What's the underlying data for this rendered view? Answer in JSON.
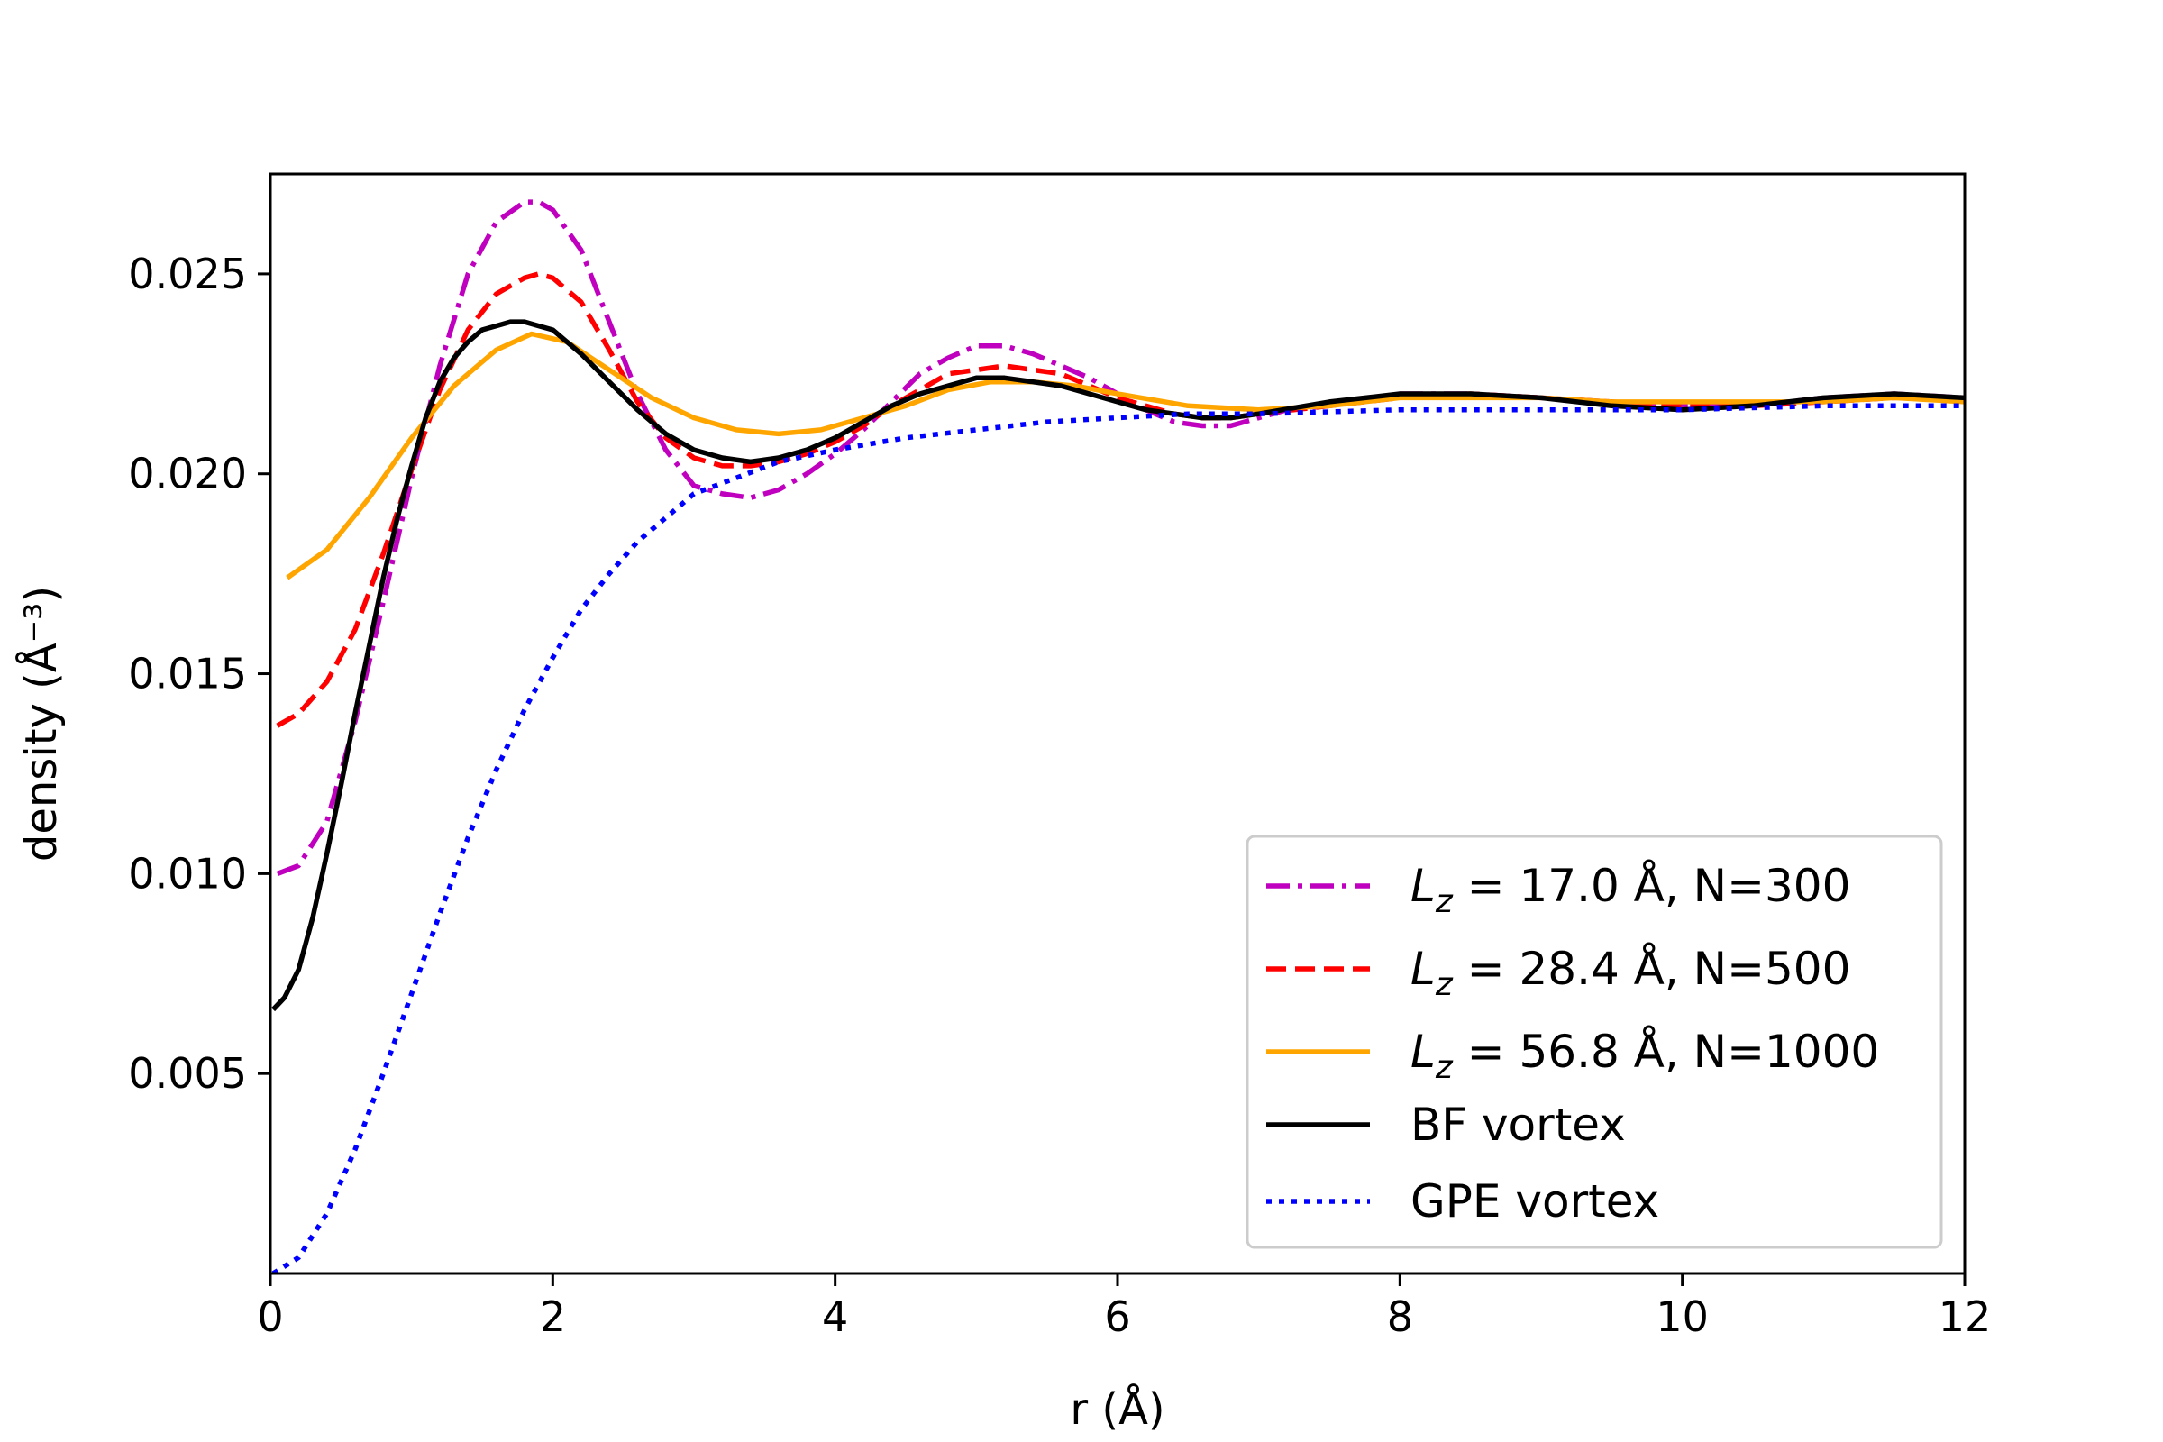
{
  "chart_data": {
    "type": "line",
    "title": "",
    "xlabel": "r (Å)",
    "ylabel": "density (Å⁻³)",
    "xlim": [
      0,
      12
    ],
    "ylim": [
      0.0,
      0.0275
    ],
    "xticks": [
      "0",
      "2",
      "4",
      "6",
      "8",
      "10",
      "12"
    ],
    "yticks": [
      "0.005",
      "0.010",
      "0.015",
      "0.020",
      "0.025"
    ],
    "legend_position": "lower-right",
    "series": [
      {
        "name": "L_z = 17.0 Å, N=300",
        "label_main": "L",
        "label_sub": "z",
        "label_rest": " = 17.0 Å, N=300",
        "color": "#bf00bf",
        "style": "dashdot",
        "x": [
          0.05,
          0.2,
          0.4,
          0.6,
          0.8,
          1.0,
          1.2,
          1.4,
          1.6,
          1.8,
          1.9,
          2.0,
          2.2,
          2.4,
          2.6,
          2.8,
          3.0,
          3.2,
          3.4,
          3.6,
          3.8,
          4.0,
          4.2,
          4.4,
          4.6,
          4.8,
          5.0,
          5.2,
          5.4,
          5.6,
          5.8,
          6.0,
          6.2,
          6.4,
          6.6,
          6.8,
          7.0,
          7.2,
          7.5,
          8.0,
          8.5,
          9.0,
          9.5,
          10.0,
          10.5,
          11.0,
          11.5,
          12.0
        ],
        "y": [
          0.01,
          0.0102,
          0.0113,
          0.0138,
          0.0168,
          0.0199,
          0.0227,
          0.025,
          0.0263,
          0.0268,
          0.0268,
          0.0266,
          0.0256,
          0.0238,
          0.022,
          0.0206,
          0.0197,
          0.0195,
          0.0194,
          0.0196,
          0.02,
          0.0205,
          0.0211,
          0.0218,
          0.0225,
          0.0229,
          0.0232,
          0.0232,
          0.023,
          0.0227,
          0.0224,
          0.022,
          0.0216,
          0.0213,
          0.0212,
          0.0212,
          0.0214,
          0.0216,
          0.0217,
          0.022,
          0.022,
          0.0219,
          0.0218,
          0.0217,
          0.0217,
          0.0219,
          0.022,
          0.0219
        ]
      },
      {
        "name": "L_z = 28.4 Å, N=500",
        "label_main": "L",
        "label_sub": "z",
        "label_rest": " = 28.4 Å, N=500",
        "color": "#ff0000",
        "style": "dashed",
        "x": [
          0.05,
          0.2,
          0.4,
          0.6,
          0.8,
          1.0,
          1.2,
          1.4,
          1.6,
          1.8,
          1.9,
          2.0,
          2.2,
          2.4,
          2.6,
          2.8,
          3.0,
          3.2,
          3.4,
          3.6,
          3.8,
          4.0,
          4.2,
          4.4,
          4.6,
          4.8,
          5.0,
          5.2,
          5.4,
          5.6,
          5.8,
          6.0,
          6.2,
          6.4,
          6.6,
          6.8,
          7.0,
          7.5,
          8.0,
          8.5,
          9.0,
          9.5,
          10.0,
          10.5,
          11.0,
          11.5,
          12.0
        ],
        "y": [
          0.0137,
          0.014,
          0.0148,
          0.0161,
          0.018,
          0.0201,
          0.0221,
          0.0236,
          0.0245,
          0.0249,
          0.025,
          0.0249,
          0.0243,
          0.0231,
          0.0218,
          0.0209,
          0.0204,
          0.0202,
          0.0202,
          0.0203,
          0.0205,
          0.0208,
          0.0212,
          0.0217,
          0.0221,
          0.0225,
          0.0226,
          0.0227,
          0.0226,
          0.0225,
          0.0222,
          0.0219,
          0.0217,
          0.0215,
          0.0214,
          0.0214,
          0.0215,
          0.0217,
          0.0219,
          0.022,
          0.0219,
          0.0218,
          0.0217,
          0.0217,
          0.0218,
          0.0219,
          0.0219
        ]
      },
      {
        "name": "L_z = 56.8 Å, N=1000",
        "label_main": "L",
        "label_sub": "z",
        "label_rest": " = 56.8 Å, N=1000",
        "color": "#ffa500",
        "style": "solid",
        "x": [
          0.12,
          0.4,
          0.7,
          1.0,
          1.3,
          1.6,
          1.85,
          2.1,
          2.4,
          2.7,
          3.0,
          3.3,
          3.6,
          3.9,
          4.2,
          4.5,
          4.8,
          5.1,
          5.4,
          5.7,
          6.0,
          6.5,
          7.0,
          7.5,
          8.0,
          8.5,
          9.0,
          9.5,
          10.0,
          10.5,
          11.0,
          11.5,
          12.0
        ],
        "y": [
          0.0174,
          0.0181,
          0.0194,
          0.0209,
          0.0222,
          0.0231,
          0.0235,
          0.0233,
          0.0226,
          0.0219,
          0.0214,
          0.0211,
          0.021,
          0.0211,
          0.0214,
          0.0217,
          0.0221,
          0.0223,
          0.0223,
          0.0222,
          0.022,
          0.0217,
          0.0216,
          0.0217,
          0.0219,
          0.0219,
          0.0219,
          0.0218,
          0.0218,
          0.0218,
          0.0218,
          0.0219,
          0.0218
        ]
      },
      {
        "name": "BF vortex",
        "color": "#000000",
        "style": "solid",
        "x": [
          0.02,
          0.1,
          0.2,
          0.3,
          0.4,
          0.5,
          0.6,
          0.7,
          0.8,
          0.9,
          1.0,
          1.1,
          1.2,
          1.3,
          1.4,
          1.5,
          1.6,
          1.7,
          1.8,
          1.9,
          2.0,
          2.1,
          2.2,
          2.4,
          2.6,
          2.8,
          3.0,
          3.2,
          3.4,
          3.6,
          3.8,
          4.0,
          4.2,
          4.4,
          4.6,
          4.8,
          5.0,
          5.2,
          5.4,
          5.6,
          5.8,
          6.0,
          6.2,
          6.4,
          6.6,
          6.8,
          7.0,
          7.5,
          8.0,
          8.5,
          9.0,
          9.5,
          10.0,
          10.5,
          11.0,
          11.5,
          12.0
        ],
        "y": [
          0.0066,
          0.0069,
          0.0076,
          0.0089,
          0.0105,
          0.0122,
          0.014,
          0.0157,
          0.0174,
          0.0189,
          0.0202,
          0.0214,
          0.0223,
          0.0229,
          0.0233,
          0.0236,
          0.0237,
          0.0238,
          0.0238,
          0.0237,
          0.0236,
          0.0233,
          0.023,
          0.0223,
          0.0216,
          0.021,
          0.0206,
          0.0204,
          0.0203,
          0.0204,
          0.0206,
          0.0209,
          0.0213,
          0.0217,
          0.022,
          0.0222,
          0.0224,
          0.0224,
          0.0223,
          0.0222,
          0.022,
          0.0218,
          0.0216,
          0.0215,
          0.0214,
          0.0214,
          0.0215,
          0.0218,
          0.022,
          0.022,
          0.0219,
          0.0217,
          0.0216,
          0.0217,
          0.0219,
          0.022,
          0.0219
        ]
      },
      {
        "name": "GPE vortex",
        "color": "#0000ff",
        "style": "dotted",
        "x": [
          0.02,
          0.2,
          0.4,
          0.6,
          0.8,
          1.0,
          1.2,
          1.4,
          1.6,
          1.8,
          2.0,
          2.2,
          2.4,
          2.6,
          2.8,
          3.0,
          3.3,
          3.6,
          4.0,
          4.5,
          5.0,
          5.5,
          6.0,
          6.5,
          7.0,
          8.0,
          9.0,
          10.0,
          11.0,
          12.0
        ],
        "y": [
          0.0,
          0.0004,
          0.0015,
          0.0031,
          0.005,
          0.007,
          0.009,
          0.0109,
          0.0126,
          0.0141,
          0.0154,
          0.0166,
          0.0175,
          0.0183,
          0.0189,
          0.0195,
          0.0199,
          0.0203,
          0.0206,
          0.0209,
          0.0211,
          0.0213,
          0.0214,
          0.0215,
          0.0215,
          0.0216,
          0.0216,
          0.0216,
          0.0217,
          0.0217
        ]
      }
    ]
  }
}
